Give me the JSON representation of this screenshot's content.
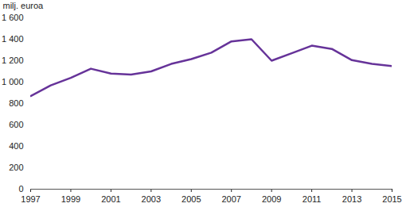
{
  "chart_data": {
    "type": "line",
    "y_label": "milj. euroa",
    "x": [
      1997,
      1998,
      1999,
      2000,
      2001,
      2002,
      2003,
      2004,
      2005,
      2006,
      2007,
      2008,
      2009,
      2010,
      2011,
      2012,
      2013,
      2014,
      2015
    ],
    "values": [
      870,
      970,
      1040,
      1125,
      1080,
      1070,
      1100,
      1170,
      1215,
      1275,
      1380,
      1400,
      1200,
      1270,
      1340,
      1310,
      1205,
      1170,
      1150
    ],
    "color": "#663399",
    "xlim": [
      1997,
      2015
    ],
    "xticks": [
      1997,
      1999,
      2001,
      2003,
      2005,
      2007,
      2009,
      2011,
      2013,
      2015
    ],
    "ylim": [
      0,
      1600
    ],
    "yticks": [
      0,
      200,
      400,
      600,
      800,
      {
        "value": 1000,
        "label": "1 000"
      },
      {
        "value": 1200,
        "label": "1 200"
      },
      {
        "value": 1400,
        "label": "1 400"
      },
      {
        "value": 1600,
        "label": "1 600"
      }
    ],
    "grid": false
  }
}
